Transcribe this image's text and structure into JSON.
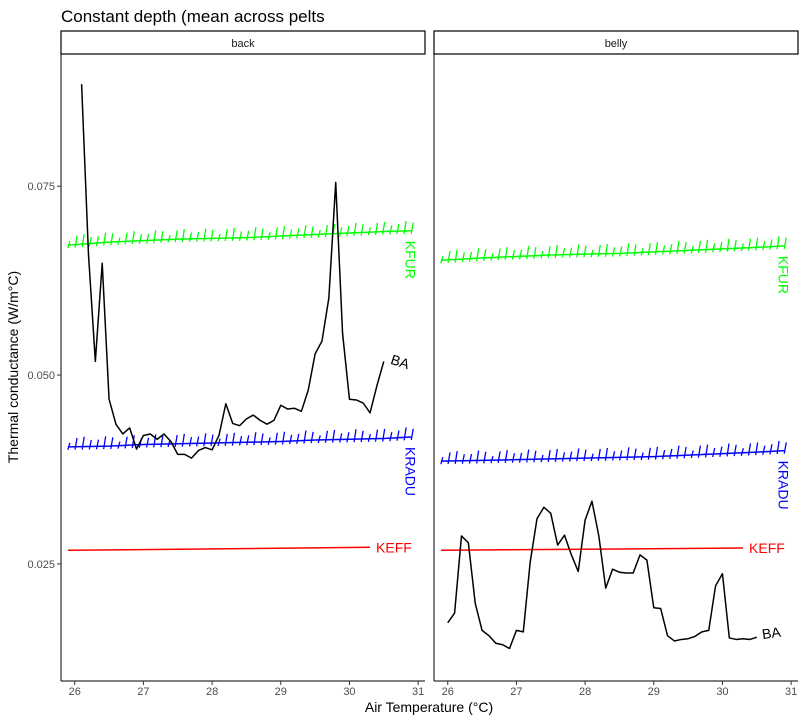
{
  "chart_data": {
    "type": "line",
    "title": "Constant depth (mean across pelts",
    "xlabel": "Air Temperature (°C)",
    "ylabel": "Thermal conductance (W/m°C)",
    "xlim": [
      25.8,
      31.1
    ],
    "ylim": [
      0.0095,
      0.0925
    ],
    "x_ticks": [
      26,
      27,
      28,
      29,
      30,
      31
    ],
    "y_ticks": [
      0.025,
      0.05,
      0.075
    ],
    "y_tick_labels": [
      "0.025",
      "0.050",
      "0.075"
    ],
    "grid": false,
    "legend": "none (series labelled directly at line ends)",
    "colors": {
      "KFUR": "#00ff00",
      "KRADU": "#0000ff",
      "KEFF": "#ff0000",
      "BA": "#000000"
    },
    "panels": [
      {
        "name": "back",
        "series": [
          {
            "name": "KFUR",
            "style": "arrows",
            "x": [
              25.9,
              26.5,
              27.0,
              27.5,
              28.0,
              28.5,
              29.0,
              29.5,
              30.0,
              30.5,
              30.9
            ],
            "y": [
              0.0672,
              0.0676,
              0.0678,
              0.068,
              0.0681,
              0.0682,
              0.0684,
              0.0686,
              0.0688,
              0.069,
              0.0691
            ]
          },
          {
            "name": "KRADU",
            "style": "arrows",
            "x": [
              25.9,
              26.5,
              27.0,
              27.5,
              28.0,
              28.5,
              29.0,
              29.5,
              30.0,
              30.5,
              30.9
            ],
            "y": [
              0.0405,
              0.0406,
              0.0408,
              0.0409,
              0.041,
              0.0411,
              0.0412,
              0.0414,
              0.0415,
              0.0416,
              0.0418
            ]
          },
          {
            "name": "KEFF",
            "style": "line",
            "x": [
              25.9,
              30.3
            ],
            "y": [
              0.0268,
              0.0272
            ]
          },
          {
            "name": "BA",
            "style": "line",
            "x": [
              26.1,
              26.2,
              26.3,
              26.4,
              26.5,
              26.6,
              26.7,
              26.8,
              26.9,
              27.0,
              27.1,
              27.2,
              27.3,
              27.4,
              27.5,
              27.6,
              27.7,
              27.8,
              27.9,
              28.0,
              28.1,
              28.2,
              28.3,
              28.4,
              28.5,
              28.6,
              28.7,
              28.8,
              28.9,
              29.0,
              29.1,
              29.2,
              29.3,
              29.4,
              29.5,
              29.6,
              29.7,
              29.8,
              29.9,
              30.0,
              30.1,
              30.2,
              30.3,
              30.4,
              30.5
            ],
            "y": [
              0.0885,
              0.066,
              0.0518,
              0.0648,
              0.0468,
              0.0435,
              0.0422,
              0.043,
              0.0402,
              0.042,
              0.0422,
              0.0415,
              0.0422,
              0.0412,
              0.0395,
              0.0395,
              0.039,
              0.04,
              0.0404,
              0.0401,
              0.042,
              0.0462,
              0.0436,
              0.0433,
              0.0442,
              0.0447,
              0.044,
              0.0435,
              0.044,
              0.046,
              0.0455,
              0.0456,
              0.0452,
              0.048,
              0.0528,
              0.0545,
              0.0602,
              0.0755,
              0.0555,
              0.0468,
              0.0467,
              0.0463,
              0.045,
              0.0486,
              0.0518
            ]
          }
        ]
      },
      {
        "name": "belly",
        "series": [
          {
            "name": "KFUR",
            "style": "arrows",
            "x": [
              25.9,
              26.5,
              27.0,
              27.5,
              28.0,
              28.5,
              29.0,
              29.5,
              30.0,
              30.5,
              30.9
            ],
            "y": [
              0.0652,
              0.0655,
              0.0657,
              0.0659,
              0.066,
              0.0661,
              0.0663,
              0.0665,
              0.0667,
              0.0669,
              0.0671
            ]
          },
          {
            "name": "KRADU",
            "style": "arrows",
            "x": [
              25.9,
              26.5,
              27.0,
              27.5,
              28.0,
              28.5,
              29.0,
              29.5,
              30.0,
              30.5,
              30.9
            ],
            "y": [
              0.0386,
              0.0387,
              0.0388,
              0.0389,
              0.039,
              0.0391,
              0.0392,
              0.0394,
              0.0396,
              0.0398,
              0.04
            ]
          },
          {
            "name": "KEFF",
            "style": "line",
            "x": [
              25.9,
              30.3
            ],
            "y": [
              0.0268,
              0.0271
            ]
          },
          {
            "name": "BA",
            "style": "line",
            "x": [
              26.0,
              26.1,
              26.2,
              26.3,
              26.4,
              26.5,
              26.6,
              26.7,
              26.8,
              26.9,
              27.0,
              27.1,
              27.2,
              27.3,
              27.4,
              27.5,
              27.6,
              27.7,
              27.8,
              27.9,
              28.0,
              28.1,
              28.2,
              28.3,
              28.4,
              28.5,
              28.6,
              28.7,
              28.8,
              28.9,
              29.0,
              29.1,
              29.2,
              29.3,
              29.4,
              29.5,
              29.6,
              29.7,
              29.8,
              29.9,
              30.0,
              30.1,
              30.2,
              30.3,
              30.4,
              30.5
            ],
            "y": [
              0.0172,
              0.0185,
              0.0287,
              0.0278,
              0.0198,
              0.0162,
              0.0155,
              0.0145,
              0.0143,
              0.0138,
              0.0162,
              0.016,
              0.0252,
              0.031,
              0.0325,
              0.0317,
              0.0275,
              0.0288,
              0.0262,
              0.024,
              0.0308,
              0.0333,
              0.0287,
              0.0218,
              0.0243,
              0.0239,
              0.0238,
              0.0238,
              0.0262,
              0.0255,
              0.0192,
              0.0191,
              0.0155,
              0.0148,
              0.015,
              0.0151,
              0.0154,
              0.016,
              0.0162,
              0.0221,
              0.0237,
              0.0152,
              0.015,
              0.0151,
              0.015,
              0.0153
            ]
          }
        ]
      }
    ]
  }
}
